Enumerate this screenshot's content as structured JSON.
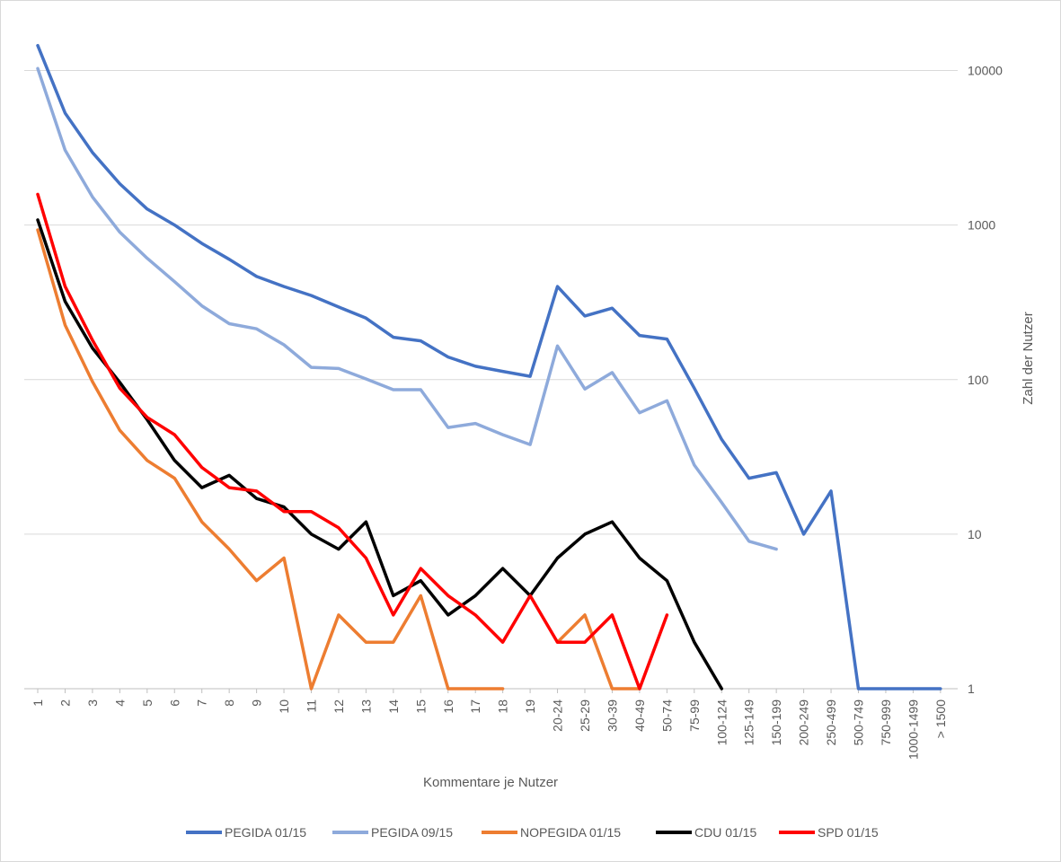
{
  "chart_data": {
    "type": "line",
    "scale": "log",
    "title": "",
    "xlabel": "Kommentare je Nutzer",
    "ylabel": "Zahl der Nutzer",
    "ylim": [
      1,
      10000
    ],
    "yticks": [
      {
        "value": 1,
        "label": "1"
      },
      {
        "value": 10,
        "label": "10"
      },
      {
        "value": 100,
        "label": "100"
      },
      {
        "value": 1000,
        "label": "1000"
      },
      {
        "value": 10000,
        "label": "10000"
      }
    ],
    "categories": [
      "1",
      "2",
      "3",
      "4",
      "5",
      "6",
      "7",
      "8",
      "9",
      "10",
      "11",
      "12",
      "13",
      "14",
      "15",
      "16",
      "17",
      "18",
      "19",
      "20-24",
      "25-29",
      "30-39",
      "40-49",
      "50-74",
      "75-99",
      "100-124",
      "125-149",
      "150-199",
      "200-249",
      "250-499",
      "500-749",
      "750-999",
      "1000-1499",
      "> 1500"
    ],
    "legend_position": "bottom",
    "series": [
      {
        "name": "PEGIDA 01/15",
        "color": "#4472c4",
        "values": [
          14500,
          5300,
          2950,
          1850,
          1270,
          1000,
          760,
          600,
          465,
          400,
          350,
          295,
          250,
          188,
          178,
          140,
          122,
          113,
          105,
          400,
          258,
          290,
          193,
          183,
          88,
          41,
          23,
          25,
          10,
          19,
          1,
          1,
          1,
          1
        ]
      },
      {
        "name": "PEGIDA 09/15",
        "color": "#8eaadb",
        "values": [
          10300,
          3050,
          1520,
          900,
          610,
          430,
          300,
          230,
          213,
          168,
          120,
          118,
          101,
          86,
          86,
          49,
          52,
          44,
          38,
          165,
          87,
          111,
          61,
          73,
          28,
          16,
          9,
          8,
          null,
          null,
          null,
          null,
          null,
          null
        ]
      },
      {
        "name": "NOPEGIDA 01/15",
        "color": "#ed7d31",
        "values": [
          930,
          225,
          97,
          47,
          30,
          23,
          12,
          8,
          5,
          7,
          1,
          3,
          2,
          2,
          4,
          1,
          1,
          1,
          null,
          2,
          3,
          1,
          1,
          null,
          null,
          null,
          null,
          null,
          null,
          null,
          null,
          null,
          null,
          null
        ]
      },
      {
        "name": "CDU 01/15",
        "color": "#000000",
        "values": [
          1080,
          320,
          160,
          96,
          55,
          30,
          20,
          24,
          17,
          15,
          10,
          8,
          12,
          4,
          5,
          3,
          4,
          6,
          4,
          7,
          10,
          12,
          7,
          5,
          2,
          1,
          null,
          null,
          null,
          null,
          null,
          null,
          null,
          null
        ]
      },
      {
        "name": "SPD 01/15",
        "color": "#ff0000",
        "values": [
          1580,
          400,
          180,
          88,
          57,
          44,
          27,
          20,
          19,
          14,
          14,
          11,
          7,
          3,
          6,
          4,
          3,
          2,
          4,
          2,
          2,
          3,
          1,
          3,
          null,
          null,
          null,
          null,
          null,
          null,
          null,
          null,
          null,
          null
        ]
      }
    ]
  }
}
